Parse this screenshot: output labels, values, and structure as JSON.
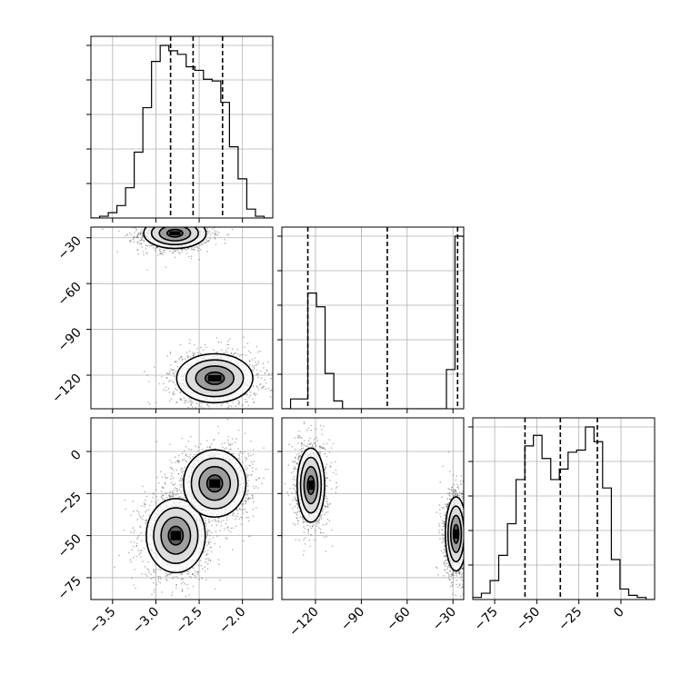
{
  "chart_data": {
    "type": "corner",
    "parameters": [
      {
        "name": "",
        "range": [
          -3.75,
          -1.65
        ],
        "ticks": [
          -3.5,
          -3.0,
          -2.5,
          -2.0
        ],
        "tick_labels": [
          "−3.5",
          "−3.0",
          "−2.5",
          "−2.0"
        ]
      },
      {
        "name": "",
        "range": [
          -142,
          -23
        ],
        "ticks": [
          -120,
          -90,
          -60,
          -30
        ],
        "tick_labels": [
          "−120",
          "−90",
          "−60",
          "−30"
        ]
      },
      {
        "name": "",
        "range": [
          -88,
          20
        ],
        "ticks": [
          -75,
          -50,
          -25,
          0
        ],
        "tick_labels": [
          "−75",
          "−50",
          "−25",
          "0"
        ]
      }
    ],
    "quantiles": [
      [
        -2.83,
        -2.57,
        -2.23
      ],
      [
        -125,
        -73,
        -27
      ],
      [
        -57,
        -36,
        -14
      ]
    ],
    "histograms": [
      {
        "bin_edges": [
          -3.75,
          -3.65,
          -3.55,
          -3.45,
          -3.35,
          -3.25,
          -3.15,
          -3.05,
          -2.95,
          -2.85,
          -2.75,
          -2.65,
          -2.55,
          -2.45,
          -2.35,
          -2.25,
          -2.15,
          -2.05,
          -1.95,
          -1.85,
          -1.75,
          -1.65
        ],
        "counts": [
          0.0,
          0.01,
          0.03,
          0.07,
          0.17,
          0.37,
          0.62,
          0.88,
          0.97,
          0.94,
          0.92,
          0.85,
          0.83,
          0.78,
          0.77,
          0.65,
          0.4,
          0.22,
          0.05,
          0.01,
          0.0
        ]
      },
      {
        "bin_edges": [
          -142,
          -136.3,
          -130.7,
          -125,
          -119.3,
          -113.7,
          -108,
          -102.3,
          -96.7,
          -91,
          -85.3,
          -79.7,
          -74,
          -68.3,
          -62.7,
          -57,
          -51.3,
          -45.7,
          -40,
          -34.3,
          -28.7,
          -23
        ],
        "counts": [
          0.0,
          0.05,
          0.05,
          0.59,
          0.52,
          0.18,
          0.04,
          0.0,
          0.0,
          0.0,
          0.0,
          0.0,
          0.0,
          0.0,
          0.0,
          0.0,
          0.0,
          0.0,
          0.0,
          0.2,
          0.88,
          0.28
        ]
      },
      {
        "bin_edges": [
          -88,
          -82.9,
          -77.7,
          -72.6,
          -67.4,
          -62.3,
          -57.1,
          -52,
          -46.9,
          -41.7,
          -36.6,
          -31.4,
          -26.3,
          -21.1,
          -16,
          -10.9,
          -5.7,
          -0.6,
          4.6,
          9.7,
          14.9,
          20
        ],
        "counts": [
          0.01,
          0.03,
          0.09,
          0.21,
          0.36,
          0.57,
          0.73,
          0.78,
          0.67,
          0.57,
          0.62,
          0.7,
          0.71,
          0.82,
          0.75,
          0.53,
          0.19,
          0.05,
          0.02,
          0.01,
          0.0
        ]
      }
    ],
    "hist_ytick_fractions": [
      0.2,
      0.4,
      0.6,
      0.8,
      1.0
    ],
    "pairs": [
      {
        "x_param": 0,
        "y_param": 1,
        "modes": [
          {
            "cx": -2.78,
            "cy": -27,
            "sx": 0.18,
            "sy": 5,
            "n": 1400
          },
          {
            "cx": -2.32,
            "cy": -122,
            "sx": 0.22,
            "sy": 8,
            "n": 1400
          }
        ]
      },
      {
        "x_param": 0,
        "y_param": 2,
        "modes": [
          {
            "cx": -2.77,
            "cy": -50,
            "sx": 0.17,
            "sy": 11,
            "n": 1500
          },
          {
            "cx": -2.32,
            "cy": -19,
            "sx": 0.18,
            "sy": 10,
            "n": 1500
          }
        ]
      },
      {
        "x_param": 1,
        "y_param": 2,
        "modes": [
          {
            "cx": -123,
            "cy": -20,
            "sx": 4.5,
            "sy": 11,
            "n": 1400
          },
          {
            "cx": -28,
            "cy": -49,
            "sx": 3.5,
            "sy": 11,
            "n": 1400
          }
        ]
      }
    ],
    "grid": true,
    "style": {
      "line_color": "#000000",
      "point_color": "#555555",
      "grid_color": "#b0b0b0"
    }
  }
}
